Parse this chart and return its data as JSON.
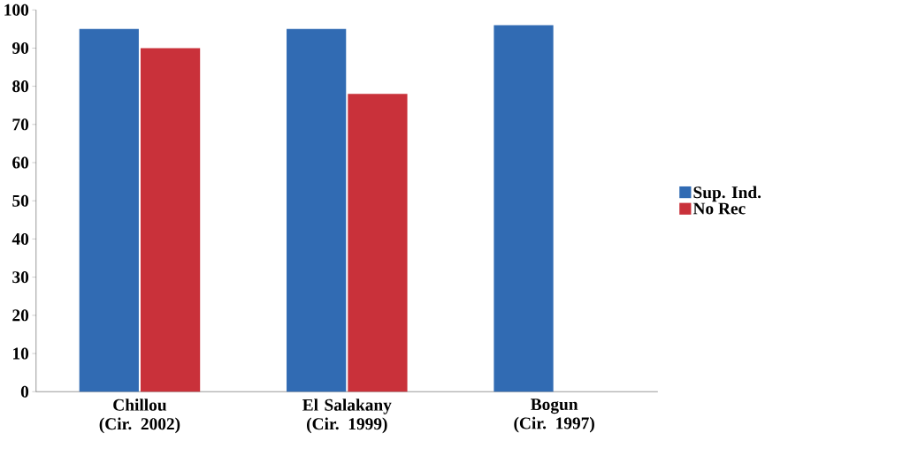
{
  "chart_data": {
    "type": "bar",
    "categories": [
      "Chillou (Cir. 2002)",
      "El Salakany (Cir. 1999)",
      "Bogun (Cir. 1997)"
    ],
    "series": [
      {
        "name": "Sup. Ind.",
        "color": "#316bb3",
        "values": [
          95,
          95,
          96
        ]
      },
      {
        "name": "No Rec",
        "color": "#c9313a",
        "values": [
          90,
          78,
          null
        ]
      }
    ],
    "ylim": [
      0,
      100
    ],
    "yticks": [
      0,
      10,
      20,
      30,
      40,
      50,
      60,
      70,
      80,
      90,
      100
    ],
    "grid": false,
    "legend": "right"
  }
}
